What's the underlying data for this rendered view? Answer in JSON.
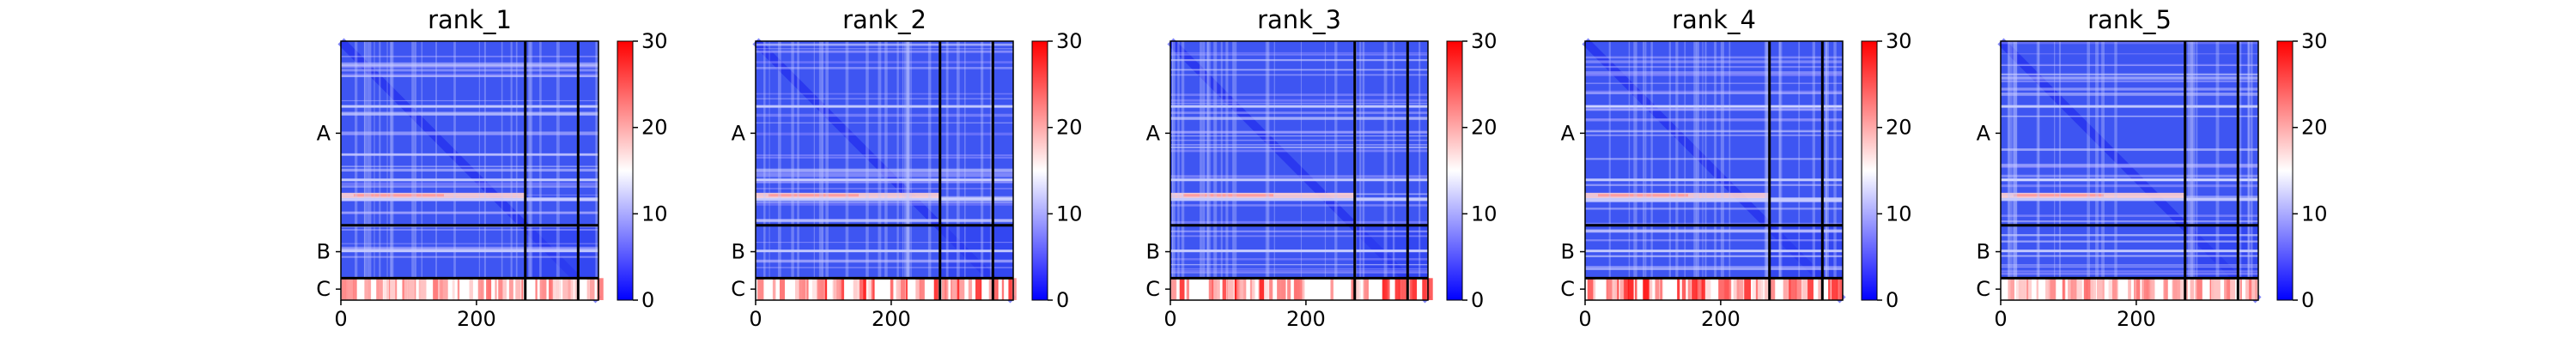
{
  "chart_data": [
    {
      "type": "heatmap",
      "title": "rank_1",
      "row_groups": [
        "A",
        "B",
        "C"
      ],
      "xticks": [
        0,
        200
      ],
      "x_range": [
        0,
        380
      ],
      "group_boundaries": [
        272,
        350
      ],
      "colorbar": {
        "ticks": [
          0,
          10,
          20,
          30
        ],
        "range": [
          0,
          30
        ],
        "colors": [
          "#0000ff",
          "#ffffff",
          "#ff0000"
        ]
      },
      "c_intensity": 0.55
    },
    {
      "type": "heatmap",
      "title": "rank_2",
      "row_groups": [
        "A",
        "B",
        "C"
      ],
      "xticks": [
        0,
        200
      ],
      "x_range": [
        0,
        380
      ],
      "group_boundaries": [
        272,
        350
      ],
      "colorbar": {
        "ticks": [
          0,
          10,
          20,
          30
        ],
        "range": [
          0,
          30
        ],
        "colors": [
          "#0000ff",
          "#ffffff",
          "#ff0000"
        ]
      },
      "c_intensity": 0.9
    },
    {
      "type": "heatmap",
      "title": "rank_3",
      "row_groups": [
        "A",
        "B",
        "C"
      ],
      "xticks": [
        0,
        200
      ],
      "x_range": [
        0,
        380
      ],
      "group_boundaries": [
        272,
        350
      ],
      "colorbar": {
        "ticks": [
          0,
          10,
          20,
          30
        ],
        "range": [
          0,
          30
        ],
        "colors": [
          "#0000ff",
          "#ffffff",
          "#ff0000"
        ]
      },
      "c_intensity": 0.9
    },
    {
      "type": "heatmap",
      "title": "rank_4",
      "row_groups": [
        "A",
        "B",
        "C"
      ],
      "xticks": [
        0,
        200
      ],
      "x_range": [
        0,
        380
      ],
      "group_boundaries": [
        272,
        350
      ],
      "colorbar": {
        "ticks": [
          0,
          10,
          20,
          30
        ],
        "range": [
          0,
          30
        ],
        "colors": [
          "#0000ff",
          "#ffffff",
          "#ff0000"
        ]
      },
      "c_intensity": 0.95
    },
    {
      "type": "heatmap",
      "title": "rank_5",
      "row_groups": [
        "A",
        "B",
        "C"
      ],
      "xticks": [
        0,
        200
      ],
      "x_range": [
        0,
        380
      ],
      "group_boundaries": [
        272,
        350
      ],
      "colorbar": {
        "ticks": [
          0,
          10,
          20,
          30
        ],
        "range": [
          0,
          30
        ],
        "colors": [
          "#0000ff",
          "#ffffff",
          "#ff0000"
        ]
      },
      "c_intensity": 0.55
    }
  ]
}
